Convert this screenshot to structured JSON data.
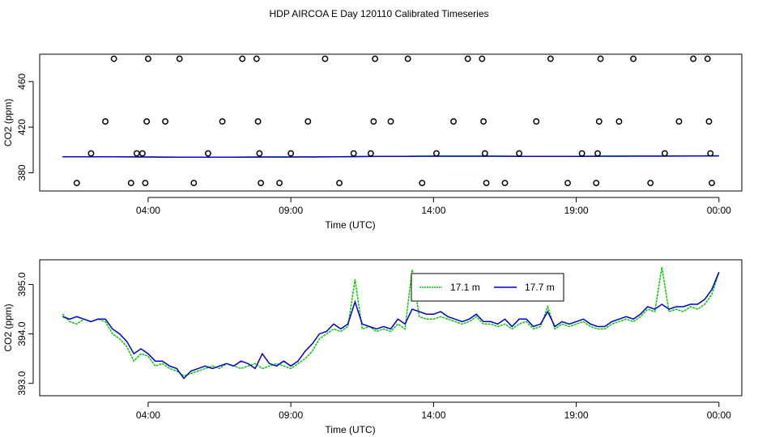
{
  "title": "HDP AIRCOA E  Day 120110  Calibrated Timeseries",
  "colors": {
    "green": "#00cc00",
    "blue": "#0000cc",
    "axis": "#000000",
    "points": "#000000"
  },
  "chart_data": [
    {
      "type": "scatter",
      "xlabel": "Time (UTC)",
      "ylabel": "CO2 (ppm)",
      "xticks": [
        {
          "value": 4,
          "label": "04:00"
        },
        {
          "value": 9,
          "label": "09:00"
        },
        {
          "value": 14,
          "label": "14:00"
        },
        {
          "value": 19,
          "label": "19:00"
        },
        {
          "value": 24,
          "label": "00:00"
        }
      ],
      "yticks": [
        {
          "value": 380,
          "label": "380"
        },
        {
          "value": 420,
          "label": "420"
        },
        {
          "value": 460,
          "label": "460"
        }
      ],
      "xlim": [
        0.2,
        24.8
      ],
      "ylim": [
        364,
        484
      ],
      "grid": false,
      "points": [
        {
          "x": 1.5,
          "y": 371
        },
        {
          "x": 2.0,
          "y": 397
        },
        {
          "x": 2.5,
          "y": 425
        },
        {
          "x": 2.8,
          "y": 480
        },
        {
          "x": 3.4,
          "y": 371
        },
        {
          "x": 3.6,
          "y": 397
        },
        {
          "x": 3.8,
          "y": 397
        },
        {
          "x": 3.9,
          "y": 371
        },
        {
          "x": 3.95,
          "y": 425
        },
        {
          "x": 4.0,
          "y": 480
        },
        {
          "x": 4.6,
          "y": 425
        },
        {
          "x": 5.1,
          "y": 480
        },
        {
          "x": 5.6,
          "y": 371
        },
        {
          "x": 6.1,
          "y": 397
        },
        {
          "x": 6.6,
          "y": 425
        },
        {
          "x": 7.3,
          "y": 480
        },
        {
          "x": 7.8,
          "y": 480
        },
        {
          "x": 7.85,
          "y": 425
        },
        {
          "x": 7.9,
          "y": 397
        },
        {
          "x": 7.95,
          "y": 371
        },
        {
          "x": 8.6,
          "y": 371
        },
        {
          "x": 9.0,
          "y": 397
        },
        {
          "x": 9.6,
          "y": 425
        },
        {
          "x": 10.2,
          "y": 480
        },
        {
          "x": 10.7,
          "y": 371
        },
        {
          "x": 11.2,
          "y": 397
        },
        {
          "x": 11.8,
          "y": 397
        },
        {
          "x": 11.9,
          "y": 425
        },
        {
          "x": 11.95,
          "y": 480
        },
        {
          "x": 12.5,
          "y": 425
        },
        {
          "x": 13.1,
          "y": 480
        },
        {
          "x": 13.6,
          "y": 371
        },
        {
          "x": 14.1,
          "y": 397
        },
        {
          "x": 14.7,
          "y": 425
        },
        {
          "x": 15.2,
          "y": 480
        },
        {
          "x": 15.7,
          "y": 480
        },
        {
          "x": 15.75,
          "y": 425
        },
        {
          "x": 15.8,
          "y": 397
        },
        {
          "x": 15.85,
          "y": 371
        },
        {
          "x": 16.5,
          "y": 371
        },
        {
          "x": 17.0,
          "y": 397
        },
        {
          "x": 17.6,
          "y": 425
        },
        {
          "x": 18.1,
          "y": 480
        },
        {
          "x": 18.7,
          "y": 371
        },
        {
          "x": 19.2,
          "y": 397
        },
        {
          "x": 19.7,
          "y": 371
        },
        {
          "x": 19.75,
          "y": 397
        },
        {
          "x": 19.8,
          "y": 425
        },
        {
          "x": 19.85,
          "y": 480
        },
        {
          "x": 20.5,
          "y": 425
        },
        {
          "x": 21.0,
          "y": 480
        },
        {
          "x": 21.6,
          "y": 371
        },
        {
          "x": 22.1,
          "y": 397
        },
        {
          "x": 22.6,
          "y": 425
        },
        {
          "x": 23.1,
          "y": 480
        },
        {
          "x": 23.6,
          "y": 480
        },
        {
          "x": 23.65,
          "y": 425
        },
        {
          "x": 23.7,
          "y": 397
        },
        {
          "x": 23.75,
          "y": 371
        }
      ],
      "series": [
        {
          "name": "17.1 m",
          "color": "#00cc00",
          "x": [
            1.0,
            2.0,
            3.0,
            4.0,
            5.0,
            6.0,
            7.0,
            8.0,
            9.0,
            10.0,
            11.0,
            12.0,
            13.0,
            14.0,
            15.0,
            16.0,
            17.0,
            18.0,
            19.0,
            20.0,
            21.0,
            22.0,
            23.0,
            24.0
          ],
          "values": [
            394.0,
            394.0,
            394.0,
            393.8,
            393.6,
            393.7,
            393.7,
            393.8,
            393.8,
            393.9,
            394.1,
            394.3,
            394.4,
            394.5,
            394.5,
            394.5,
            394.4,
            394.4,
            394.4,
            394.5,
            394.6,
            394.6,
            394.7,
            394.8
          ]
        },
        {
          "name": "17.7 m",
          "color": "#0000cc",
          "x": [
            1.0,
            2.0,
            3.0,
            4.0,
            5.0,
            6.0,
            7.0,
            8.0,
            9.0,
            10.0,
            11.0,
            12.0,
            13.0,
            14.0,
            15.0,
            16.0,
            17.0,
            18.0,
            19.0,
            20.0,
            21.0,
            22.0,
            23.0,
            24.0
          ],
          "values": [
            394.0,
            394.0,
            394.0,
            393.8,
            393.6,
            393.7,
            393.7,
            393.8,
            393.8,
            393.9,
            394.1,
            394.3,
            394.4,
            394.5,
            394.5,
            394.5,
            394.4,
            394.4,
            394.4,
            394.5,
            394.6,
            394.6,
            394.7,
            394.8
          ]
        }
      ]
    },
    {
      "type": "line",
      "xlabel": "Time (UTC)",
      "ylabel": "CO2 (ppm)",
      "xticks": [
        {
          "value": 4,
          "label": "04:00"
        },
        {
          "value": 9,
          "label": "09:00"
        },
        {
          "value": 14,
          "label": "14:00"
        },
        {
          "value": 19,
          "label": "19:00"
        },
        {
          "value": 24,
          "label": "00:00"
        }
      ],
      "yticks": [
        {
          "value": 393.0,
          "label": "393.0"
        },
        {
          "value": 394.0,
          "label": "394.0"
        },
        {
          "value": 395.0,
          "label": "395.0"
        }
      ],
      "xlim": [
        0.2,
        24.8
      ],
      "ylim": [
        392.75,
        395.5
      ],
      "grid": false,
      "legend": {
        "placement": "top-center"
      },
      "series": [
        {
          "name": "17.1 m",
          "color": "#00cc00",
          "dash": true,
          "x": [
            1.0,
            1.25,
            1.5,
            1.75,
            2.0,
            2.25,
            2.5,
            2.75,
            3.0,
            3.25,
            3.5,
            3.75,
            4.0,
            4.25,
            4.5,
            4.75,
            5.0,
            5.25,
            5.5,
            5.75,
            6.0,
            6.25,
            6.5,
            6.75,
            7.0,
            7.25,
            7.5,
            7.75,
            8.0,
            8.25,
            8.5,
            8.75,
            9.0,
            9.25,
            9.5,
            9.75,
            10.0,
            10.25,
            10.5,
            10.75,
            11.0,
            11.25,
            11.5,
            11.75,
            12.0,
            12.25,
            12.5,
            12.75,
            13.0,
            13.25,
            13.5,
            13.75,
            14.0,
            14.25,
            14.5,
            14.75,
            15.0,
            15.25,
            15.5,
            15.75,
            16.0,
            16.25,
            16.5,
            16.75,
            17.0,
            17.25,
            17.5,
            17.75,
            18.0,
            18.25,
            18.5,
            18.75,
            19.0,
            19.25,
            19.5,
            19.75,
            20.0,
            20.25,
            20.5,
            20.75,
            21.0,
            21.25,
            21.5,
            21.75,
            22.0,
            22.25,
            22.5,
            22.75,
            23.0,
            23.25,
            23.5,
            23.75,
            24.0
          ],
          "values": [
            394.4,
            394.25,
            394.2,
            394.3,
            394.25,
            394.3,
            394.25,
            394.0,
            393.9,
            393.75,
            393.45,
            393.6,
            393.55,
            393.35,
            393.4,
            393.3,
            393.25,
            393.15,
            393.2,
            393.25,
            393.3,
            393.35,
            393.3,
            393.4,
            393.35,
            393.3,
            393.35,
            393.4,
            393.3,
            393.35,
            393.4,
            393.35,
            393.3,
            393.4,
            393.5,
            393.65,
            393.9,
            394.0,
            394.1,
            394.05,
            394.15,
            395.1,
            394.1,
            394.15,
            394.05,
            394.1,
            394.05,
            394.2,
            394.1,
            395.3,
            394.35,
            394.3,
            394.3,
            394.35,
            394.3,
            394.25,
            394.2,
            394.25,
            394.35,
            394.2,
            394.2,
            394.15,
            394.2,
            394.1,
            394.2,
            394.25,
            394.1,
            394.15,
            394.55,
            394.1,
            394.2,
            394.15,
            394.2,
            394.25,
            394.15,
            394.1,
            394.1,
            394.2,
            394.25,
            394.3,
            394.25,
            394.35,
            394.5,
            394.45,
            395.35,
            394.45,
            394.5,
            394.45,
            394.55,
            394.5,
            394.6,
            394.8,
            395.25
          ]
        },
        {
          "name": "17.7 m",
          "color": "#0000cc",
          "dash": false,
          "x": [
            1.0,
            1.25,
            1.5,
            1.75,
            2.0,
            2.25,
            2.5,
            2.75,
            3.0,
            3.25,
            3.5,
            3.75,
            4.0,
            4.25,
            4.5,
            4.75,
            5.0,
            5.25,
            5.5,
            5.75,
            6.0,
            6.25,
            6.5,
            6.75,
            7.0,
            7.25,
            7.5,
            7.75,
            8.0,
            8.25,
            8.5,
            8.75,
            9.0,
            9.25,
            9.5,
            9.75,
            10.0,
            10.25,
            10.5,
            10.75,
            11.0,
            11.25,
            11.5,
            11.75,
            12.0,
            12.25,
            12.5,
            12.75,
            13.0,
            13.25,
            13.5,
            13.75,
            14.0,
            14.25,
            14.5,
            14.75,
            15.0,
            15.25,
            15.5,
            15.75,
            16.0,
            16.25,
            16.5,
            16.75,
            17.0,
            17.25,
            17.5,
            17.75,
            18.0,
            18.25,
            18.5,
            18.75,
            19.0,
            19.25,
            19.5,
            19.75,
            20.0,
            20.25,
            20.5,
            20.75,
            21.0,
            21.25,
            21.5,
            21.75,
            22.0,
            22.25,
            22.5,
            22.75,
            23.0,
            23.25,
            23.5,
            23.75,
            24.0
          ],
          "values": [
            394.35,
            394.3,
            394.35,
            394.3,
            394.25,
            394.3,
            394.3,
            394.1,
            394.0,
            393.85,
            393.6,
            393.7,
            393.6,
            393.45,
            393.45,
            393.35,
            393.3,
            393.1,
            393.25,
            393.3,
            393.35,
            393.3,
            393.35,
            393.4,
            393.35,
            393.45,
            393.4,
            393.3,
            393.6,
            393.4,
            393.35,
            393.45,
            393.35,
            393.45,
            393.65,
            393.8,
            394.0,
            394.05,
            394.2,
            394.1,
            394.2,
            394.65,
            394.2,
            394.15,
            394.1,
            394.15,
            394.1,
            394.3,
            394.2,
            394.5,
            394.45,
            394.4,
            394.4,
            394.45,
            394.35,
            394.3,
            394.25,
            394.3,
            394.4,
            394.25,
            394.25,
            394.2,
            394.3,
            394.15,
            394.3,
            394.3,
            394.15,
            394.2,
            394.45,
            394.15,
            394.25,
            394.2,
            394.25,
            394.3,
            394.2,
            394.15,
            394.15,
            394.25,
            394.3,
            394.35,
            394.3,
            394.4,
            394.55,
            394.5,
            394.6,
            394.5,
            394.55,
            394.55,
            394.6,
            394.6,
            394.7,
            394.9,
            395.25
          ]
        }
      ]
    }
  ]
}
